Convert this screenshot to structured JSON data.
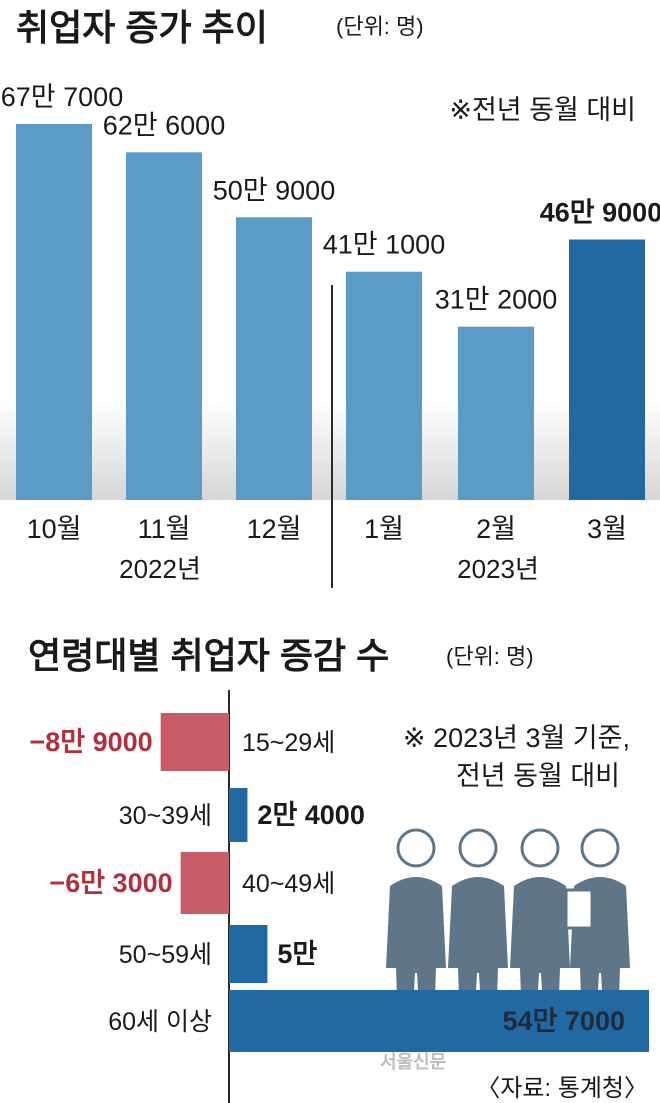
{
  "chart_data": [
    {
      "type": "bar",
      "title": "취업자 증가 추이",
      "unit": "(단위: 명)",
      "note": "※전년 동월 대비",
      "categories": [
        "10월",
        "11월",
        "12월",
        "1월",
        "2월",
        "3월"
      ],
      "values": [
        677000,
        626000,
        509000,
        411000,
        312000,
        469000
      ],
      "value_labels": [
        "67만 7000",
        "62만 6000",
        "50만 9000",
        "41만 1000",
        "31만 2000",
        "46만 9000"
      ],
      "year_groups": [
        {
          "label": "2022년",
          "categories": [
            "10월",
            "11월",
            "12월"
          ]
        },
        {
          "label": "2023년",
          "categories": [
            "1월",
            "2월",
            "3월"
          ]
        }
      ],
      "highlight_index": 5,
      "colors": {
        "bar": "#5b9bc6",
        "highlight": "#2269a3"
      }
    },
    {
      "type": "bar",
      "orientation": "horizontal",
      "title": "연령대별 취업자 증감 수",
      "unit": "(단위: 명)",
      "note": [
        "※ 2023년 3월 기준,",
        "전년 동월 대비"
      ],
      "categories": [
        "15~29세",
        "30~39세",
        "40~49세",
        "50~59세",
        "60세 이상"
      ],
      "values": [
        -89000,
        24000,
        -63000,
        50000,
        547000
      ],
      "value_labels": [
        "−8만 9000",
        "2만 4000",
        "−6만 3000",
        "5만",
        "54만 7000"
      ],
      "colors": {
        "positive": "#2269a3",
        "negative": "#c75b68"
      }
    }
  ],
  "source": "〈자료: 통계청〉",
  "watermark": "서울신문",
  "icons": [
    "business-people-icon"
  ]
}
